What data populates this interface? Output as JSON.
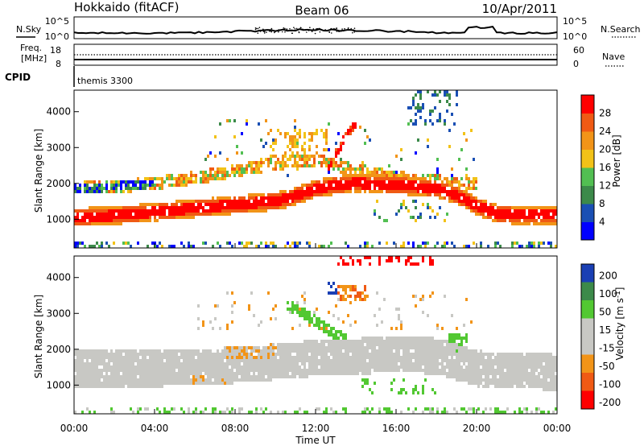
{
  "header": {
    "station": "Hokkaido (fitACF)",
    "beam": "Beam 06",
    "date": "10/Apr/2011"
  },
  "summary_panels": {
    "nsky_label": "N.Sky",
    "nsearch_label": "N.Search",
    "noise_ticks": [
      "10^5",
      "10^0"
    ],
    "freq_label_line1": "Freq.",
    "freq_label_line2": "[MHz]",
    "freq_ticks": [
      "18",
      "8"
    ],
    "nave_label": "Nave",
    "nave_ticks": [
      "60",
      "0"
    ],
    "cpid_label": "CPID",
    "cpid_text": "themis 3300"
  },
  "time_axis": {
    "label": "Time UT",
    "ticks": [
      "00:00",
      "04:00",
      "08:00",
      "12:00",
      "16:00",
      "20:00",
      "00:00"
    ]
  },
  "colors": {
    "power_scale": [
      "#0000ff",
      "#1a4fb4",
      "#3c8a4a",
      "#52bf52",
      "#f2c218",
      "#f29418",
      "#f05a14",
      "#ff0000"
    ],
    "velocity_scale": [
      "#ff0000",
      "#f05a14",
      "#f29418",
      "#c8c8c4",
      "#c8c8c4",
      "#52c832",
      "#3c8a4a",
      "#1a3fb4"
    ],
    "gray_scatter": "#c8c8c4"
  },
  "chart_data": [
    {
      "type": "heatmap",
      "panel": "power",
      "xlabel": "Time UT",
      "ylabel": "Slant Range [km]",
      "x_range_hours": [
        0,
        24
      ],
      "ylim": [
        200,
        4600
      ],
      "y_ticks": [
        1000,
        2000,
        3000,
        4000
      ],
      "colorbar": {
        "label": "Power [dB]",
        "ticks": [
          "4",
          "8",
          "12",
          "16",
          "20",
          "24",
          "28"
        ]
      },
      "bands": [
        {
          "name": "lower-band",
          "x": [
            0,
            2,
            4,
            6,
            8,
            10,
            11,
            12,
            13,
            14,
            16,
            18,
            19,
            20,
            21,
            22,
            24
          ],
          "center_km": [
            1100,
            1150,
            1250,
            1350,
            1450,
            1550,
            1700,
            1900,
            2000,
            2050,
            2000,
            1900,
            1700,
            1400,
            1200,
            1150,
            1150
          ],
          "width_km": 500,
          "level_db": 28
        },
        {
          "name": "upper-band",
          "x": [
            0,
            2,
            4,
            6,
            8,
            10,
            12,
            14,
            16,
            18,
            20
          ],
          "center_km": [
            1900,
            1950,
            2050,
            2200,
            2400,
            2600,
            2700,
            2400,
            2200,
            2100,
            2000
          ],
          "width_km": 350,
          "level_db": 20
        },
        {
          "name": "rising-arc",
          "x": [
            12.5,
            13.0,
            13.5,
            14.0
          ],
          "center_km": [
            2400,
            2900,
            3400,
            3700
          ],
          "width_km": 250,
          "level_db": 28
        }
      ]
    },
    {
      "type": "heatmap",
      "panel": "velocity",
      "xlabel": "Time UT",
      "ylabel": "Slant Range [km]",
      "x_range_hours": [
        0,
        24
      ],
      "ylim": [
        200,
        4600
      ],
      "y_ticks": [
        1000,
        2000,
        3000,
        4000
      ],
      "colorbar": {
        "label": "Velocity [m s^-1]",
        "ticks": [
          "200",
          "100",
          "50",
          "15",
          "-15",
          "-50",
          "-100",
          "-200"
        ]
      },
      "bands": [
        {
          "name": "ground-scatter",
          "x": [
            0,
            4,
            8,
            12,
            16,
            18,
            20,
            24
          ],
          "center_km": [
            1500,
            1500,
            1600,
            1800,
            1900,
            1850,
            1500,
            1400
          ],
          "width_km": 1000,
          "level_ms": 0
        },
        {
          "name": "green-arc",
          "x": [
            10.5,
            11.5,
            12.5,
            13.5
          ],
          "center_km": [
            3300,
            3000,
            2600,
            2300
          ],
          "width_km": 300,
          "level_ms": 60
        }
      ]
    }
  ]
}
